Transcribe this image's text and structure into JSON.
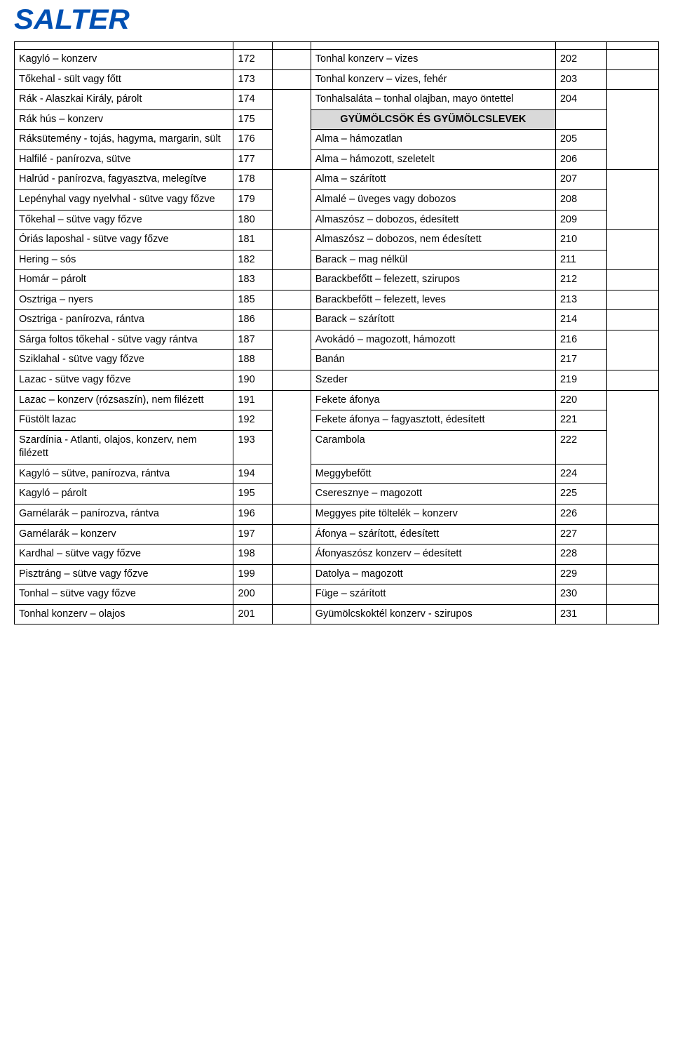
{
  "logo_text": "SALTER",
  "section_header": "GYÜMÖLCSÖK ÉS GYÜMÖLCSLEVEK",
  "columns": [
    "col1_text",
    "col1_num",
    "col2_text",
    "col2_num"
  ],
  "colors": {
    "brand_blue": "#0050b3",
    "section_bg": "#d9d9d9",
    "border": "#000000",
    "text": "#000000",
    "background": "#ffffff"
  },
  "rows": [
    {
      "l": "Kagyló – konzerv",
      "ln": "172",
      "r": "Tonhal konzerv – vizes",
      "rn": "202",
      "group": 0
    },
    {
      "l": "Tőkehal - sült vagy főtt",
      "ln": "173",
      "r": "Tonhal konzerv – vizes, fehér",
      "rn": "203",
      "group": 1
    },
    {
      "l": "Rák - Alaszkai Király, párolt",
      "ln": "174",
      "r": "Tonhalsaláta – tonhal olajban, mayo öntettel",
      "rn": "204",
      "group": 2
    },
    {
      "l": "Rák hús – konzerv",
      "ln": "175",
      "section": true,
      "group": 2
    },
    {
      "l": "Ráksütemény - tojás, hagyma, margarin, sült",
      "ln": "176",
      "r": "Alma – hámozatlan",
      "rn": "205",
      "group": 2
    },
    {
      "l": "Halfilé - panírozva, sütve",
      "ln": "177",
      "r": "Alma – hámozott, szeletelt",
      "rn": "206",
      "group": 2
    },
    {
      "l": "Halrúd - panírozva, fagyasztva, melegítve",
      "ln": "178",
      "r": "Alma – szárított",
      "rn": "207",
      "group": 3
    },
    {
      "l": "Lepényhal vagy nyelvhal - sütve vagy főzve",
      "ln": "179",
      "r": "Almalé – üveges vagy dobozos",
      "rn": "208",
      "group": 3
    },
    {
      "l": "Tőkehal – sütve vagy főzve",
      "ln": "180",
      "r": "Almaszósz – dobozos, édesített",
      "rn": "209",
      "group": 3
    },
    {
      "l": "Óriás laposhal - sütve vagy főzve",
      "ln": "181",
      "r": "Almaszósz – dobozos, nem édesített",
      "rn": "210",
      "group": 4
    },
    {
      "l": "Hering – sós",
      "ln": "182",
      "r": "Barack – mag nélkül",
      "rn": "211",
      "group": 4
    },
    {
      "l": "Homár – párolt",
      "ln": "183",
      "r": "Barackbefőtt – felezett, szirupos",
      "rn": "212",
      "group": 5
    },
    {
      "l": "Osztriga – nyers",
      "ln": "185",
      "r": "Barackbefőtt – felezett, leves",
      "rn": "213",
      "group": 6
    },
    {
      "l": "Osztriga - panírozva, rántva",
      "ln": "186",
      "r": "Barack – szárított",
      "rn": "214",
      "group": 7
    },
    {
      "l": "Sárga foltos tőkehal - sütve vagy rántva",
      "ln": "187",
      "r": "Avokádó – magozott, hámozott",
      "rn": "216",
      "group": 8
    },
    {
      "l": "Sziklahal - sütve vagy főzve",
      "ln": "188",
      "r": "Banán",
      "rn": "217",
      "group": 8
    },
    {
      "l": "Lazac - sütve vagy főzve",
      "ln": "190",
      "r": "Szeder",
      "rn": "219",
      "group": 9
    },
    {
      "l": "Lazac – konzerv (rózsaszín), nem filézett",
      "ln": "191",
      "r": "Fekete áfonya",
      "rn": "220",
      "group": 10
    },
    {
      "l": "Füstölt lazac",
      "ln": "192",
      "r": "Fekete áfonya – fagyasztott, édesített",
      "rn": "221",
      "group": 10
    },
    {
      "l": "Szardínia - Atlanti, olajos, konzerv, nem filézett",
      "ln": "193",
      "r": "Carambola",
      "rn": "222",
      "group": 10
    },
    {
      "l": "Kagyló – sütve, panírozva, rántva",
      "ln": "194",
      "r": "Meggybefőtt",
      "rn": "224",
      "group": 10
    },
    {
      "l": "Kagyló – párolt",
      "ln": "195",
      "r": "Cseresznye – magozott",
      "rn": "225",
      "group": 10
    },
    {
      "l": "Garnélarák – panírozva, rántva",
      "ln": "196",
      "r": "Meggyes pite töltelék – konzerv",
      "rn": "226",
      "group": 11
    },
    {
      "l": "Garnélarák – konzerv",
      "ln": "197",
      "r": "Áfonya – szárított, édesített",
      "rn": "227",
      "group": 12
    },
    {
      "l": "Kardhal – sütve vagy főzve",
      "ln": "198",
      "r": "Áfonyaszósz konzerv – édesített",
      "rn": "228",
      "group": 13
    },
    {
      "l": "Pisztráng – sütve vagy főzve",
      "ln": "199",
      "r": "Datolya – magozott",
      "rn": "229",
      "group": 14
    },
    {
      "l": "Tonhal – sütve vagy főzve",
      "ln": "200",
      "r": "Füge – szárított",
      "rn": "230",
      "group": 15
    },
    {
      "l": "Tonhal konzerv – olajos",
      "ln": "201",
      "r": "Gyümölcskoktél konzerv - szirupos",
      "rn": "231",
      "group": 16
    }
  ]
}
